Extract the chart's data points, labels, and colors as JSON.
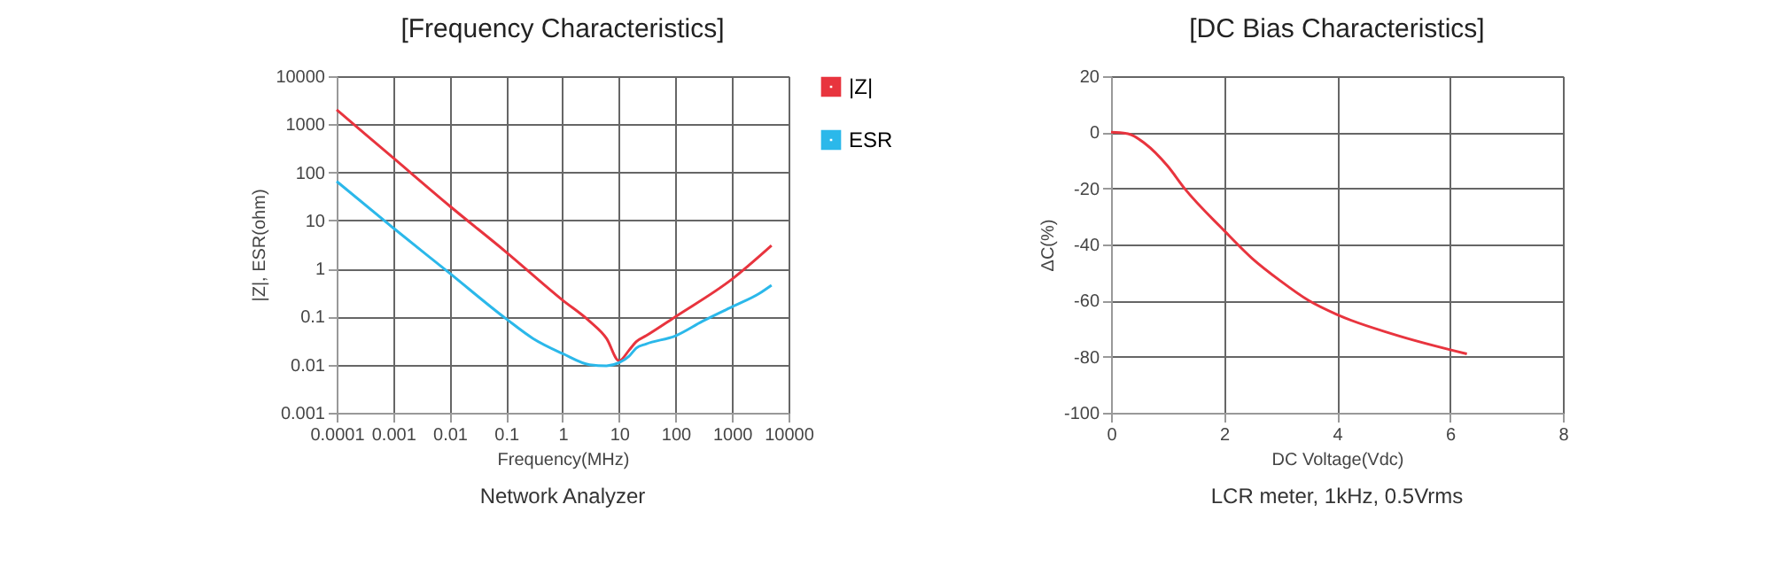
{
  "chart_data": [
    {
      "type": "line",
      "title": "[Frequency Characteristics]",
      "xlabel": "Frequency(MHz)",
      "ylabel": "|Z|, ESR(ohm)",
      "log": "xy",
      "grid": true,
      "legend": "top right",
      "line_style": "solid",
      "marker": "none",
      "xlim": [
        0.0001,
        10000
      ],
      "xticks": [
        0.0001,
        0.001,
        0.01,
        0.1,
        1,
        10,
        100,
        1000,
        10000
      ],
      "ylim": [
        0.001,
        10000
      ],
      "yticks": [
        0.001,
        0.01,
        0.1,
        1,
        10,
        100,
        1000,
        10000
      ],
      "series": [
        {
          "name": "|Z|",
          "color": "#e8343e",
          "x": [
            0.0001,
            0.001,
            0.01,
            0.1,
            1,
            3,
            6,
            10,
            15,
            20,
            30,
            100,
            1000,
            5000
          ],
          "values": [
            2000,
            200,
            20,
            2.2,
            0.22,
            0.08,
            0.035,
            0.012,
            0.02,
            0.03,
            0.04,
            0.1,
            0.6,
            3
          ]
        },
        {
          "name": "ESR",
          "color": "#2bb8ea",
          "x": [
            0.0001,
            0.001,
            0.01,
            0.1,
            0.3,
            1,
            3,
            6,
            10,
            15,
            20,
            30,
            100,
            300,
            1000,
            3000,
            5000
          ],
          "values": [
            65,
            7,
            0.8,
            0.09,
            0.035,
            0.017,
            0.01,
            0.0095,
            0.011,
            0.015,
            0.022,
            0.027,
            0.04,
            0.08,
            0.16,
            0.3,
            0.45
          ]
        }
      ],
      "annotations": [
        "Network Analyzer"
      ]
    },
    {
      "type": "line",
      "title": "[DC Bias Characteristics]",
      "xlabel": "DC Voltage(Vdc)",
      "ylabel": "ΔC(%)",
      "grid": true,
      "line_style": "solid",
      "marker": "none",
      "xlim": [
        0,
        8
      ],
      "xticks": [
        0,
        2,
        4,
        6,
        8
      ],
      "ylim": [
        -100,
        20
      ],
      "yticks": [
        -100,
        -80,
        -60,
        -40,
        -20,
        0,
        20
      ],
      "series": [
        {
          "color": "#e8343e",
          "x": [
            0,
            0.3,
            0.6,
            1,
            1.3,
            2,
            2.5,
            3,
            3.5,
            4,
            5,
            6.3
          ],
          "values": [
            0,
            -0.5,
            -4,
            -12,
            -20,
            -35,
            -45,
            -53,
            -60,
            -65,
            -72,
            -79
          ]
        }
      ],
      "annotations": [
        "LCR meter, 1kHz, 0.5Vrms"
      ]
    }
  ]
}
